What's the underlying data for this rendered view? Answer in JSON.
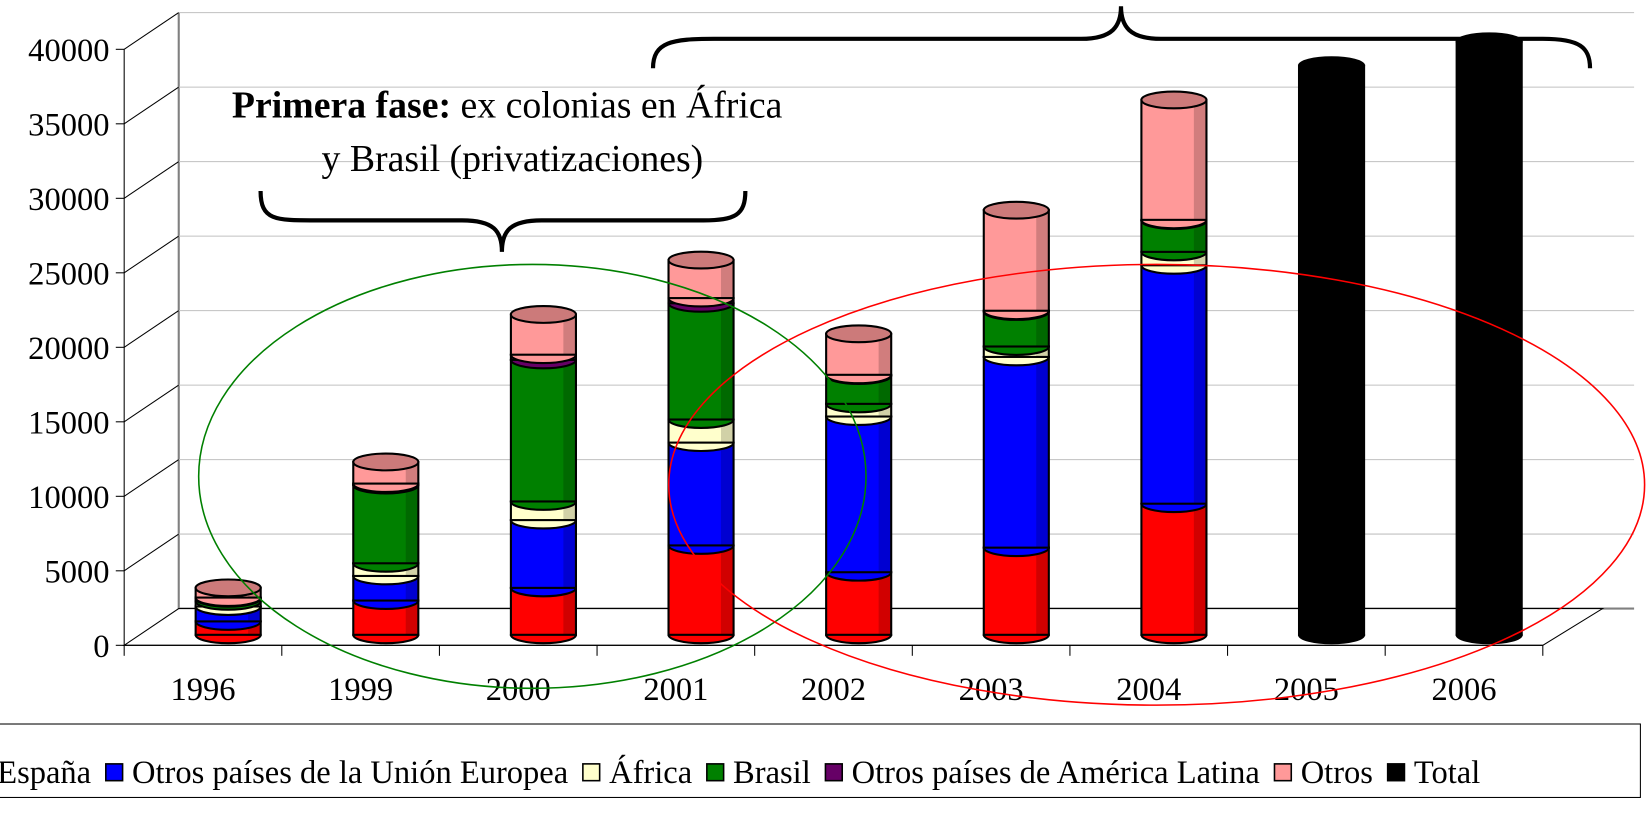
{
  "chart_data": {
    "type": "stacked_bar_3d",
    "categories": [
      "1996",
      "1999",
      "2000",
      "2001",
      "2002",
      "2003",
      "2004",
      "2005",
      "2006"
    ],
    "series": [
      {
        "name": "España",
        "color": "#ff0000",
        "values": [
          900,
          2300,
          3150,
          6000,
          4200,
          5850,
          8800,
          null,
          null
        ]
      },
      {
        "name": "Otros países de la Unión Europea",
        "color": "#0000ff",
        "values": [
          1000,
          1650,
          4550,
          6900,
          10450,
          12800,
          16000,
          null,
          null
        ]
      },
      {
        "name": "África",
        "color": "#ffffcc",
        "values": [
          350,
          850,
          1250,
          1550,
          850,
          700,
          900,
          null,
          null
        ]
      },
      {
        "name": "Brasil",
        "color": "#008000",
        "values": [
          200,
          5250,
          9500,
          7800,
          1900,
          2350,
          2100,
          null,
          null
        ]
      },
      {
        "name": "Otros países de América Latina",
        "color": "#660066",
        "values": [
          50,
          100,
          350,
          350,
          50,
          50,
          50,
          null,
          null
        ]
      },
      {
        "name": "Otros",
        "color": "#ff9999",
        "values": [
          650,
          1450,
          2700,
          2550,
          2750,
          6750,
          8050,
          null,
          null
        ]
      },
      {
        "name": "Total",
        "color": "#000000",
        "values": [
          null,
          null,
          null,
          null,
          null,
          null,
          null,
          38200,
          39800
        ]
      }
    ],
    "ylim": [
      0,
      40000
    ],
    "yticks": [
      0,
      5000,
      10000,
      15000,
      20000,
      25000,
      30000,
      35000,
      40000
    ],
    "grid": true,
    "legend": "bottom",
    "annotations": [
      {
        "bold": "Primera fase:",
        "text": " ex colonias en África",
        "line2": "y Brasil (privatizaciones)"
      }
    ]
  }
}
